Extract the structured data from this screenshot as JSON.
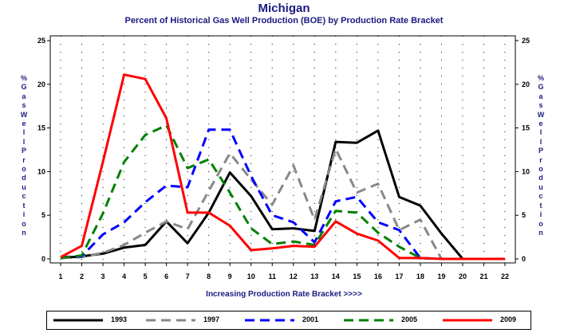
{
  "chart_data": {
    "type": "line",
    "title": "Michigan",
    "subtitle": "Percent of Historical Gas Well Production (BOE) by Production Rate Bracket",
    "xlabel": "Increasing Production Rate Bracket >>>>",
    "ylabel": "% Gas Well Production",
    "x": [
      1,
      2,
      3,
      4,
      5,
      6,
      7,
      8,
      9,
      10,
      11,
      12,
      13,
      14,
      15,
      16,
      17,
      18,
      19,
      20,
      21,
      22
    ],
    "ylim": [
      0,
      25
    ],
    "yticks": [
      0,
      5,
      10,
      15,
      20,
      25
    ],
    "grid": "dotted",
    "legend_position": "bottom",
    "series": [
      {
        "name": "1993",
        "color": "#000000",
        "style": "solid",
        "values": [
          0.1,
          0.3,
          0.6,
          1.3,
          1.6,
          4.3,
          1.8,
          5.3,
          9.9,
          7.2,
          3.4,
          3.5,
          3.2,
          13.4,
          13.3,
          14.7,
          7.1,
          6.1,
          2.9,
          0.0,
          0.0,
          0.0
        ]
      },
      {
        "name": "1997",
        "color": "#888888",
        "style": "dashed",
        "values": [
          0.1,
          0.2,
          0.7,
          1.6,
          3.0,
          4.3,
          3.4,
          7.8,
          12.1,
          9.1,
          6.2,
          10.7,
          4.5,
          12.6,
          7.6,
          8.6,
          3.3,
          4.5,
          0.0,
          0.0,
          0.0,
          0.0
        ]
      },
      {
        "name": "2001",
        "color": "#0000ff",
        "style": "dashed",
        "values": [
          0.2,
          0.3,
          2.8,
          4.2,
          6.5,
          8.4,
          8.2,
          14.8,
          14.8,
          9.5,
          5.0,
          4.2,
          1.9,
          6.6,
          7.1,
          4.2,
          3.3,
          0.1,
          0.0,
          0.0,
          0.0,
          0.0
        ]
      },
      {
        "name": "2005",
        "color": "#008000",
        "style": "dashed",
        "values": [
          0.1,
          0.4,
          5.2,
          11.1,
          14.2,
          15.3,
          10.4,
          11.4,
          7.6,
          3.5,
          1.7,
          2.0,
          1.6,
          5.5,
          5.3,
          3.0,
          1.4,
          0.1,
          0.0,
          0.0,
          0.0,
          0.0
        ]
      },
      {
        "name": "2009",
        "color": "#ff0000",
        "style": "solid",
        "values": [
          0.2,
          1.5,
          11.1,
          21.1,
          20.6,
          16.1,
          5.3,
          5.3,
          3.8,
          1.0,
          1.2,
          1.5,
          1.4,
          4.3,
          2.9,
          2.1,
          0.1,
          0.1,
          0.0,
          0.0,
          0.0,
          0.0
        ]
      }
    ]
  }
}
